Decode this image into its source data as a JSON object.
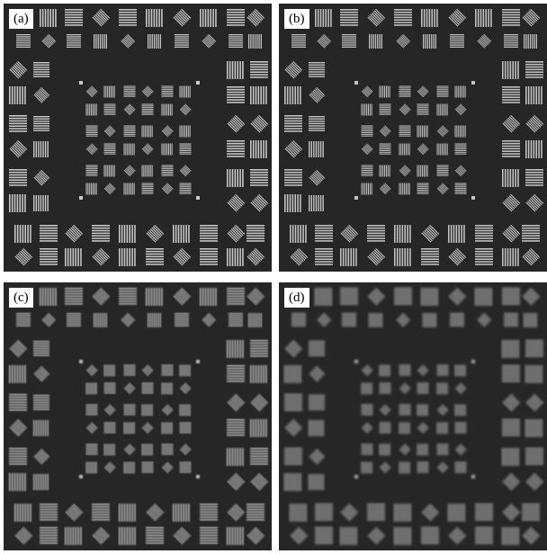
{
  "panels": [
    {
      "label": "(a)",
      "blur": 0.0,
      "brightness": 1.0
    },
    {
      "label": "(b)",
      "blur": 0.35,
      "brightness": 0.97
    },
    {
      "label": "(c)",
      "blur": 0.8,
      "brightness": 0.9
    },
    {
      "label": "(d)",
      "blur": 1.2,
      "brightness": 0.82
    }
  ],
  "colors": {
    "background": "#262626",
    "pattern": "#c8c8c8",
    "frame": "#ffffff"
  }
}
